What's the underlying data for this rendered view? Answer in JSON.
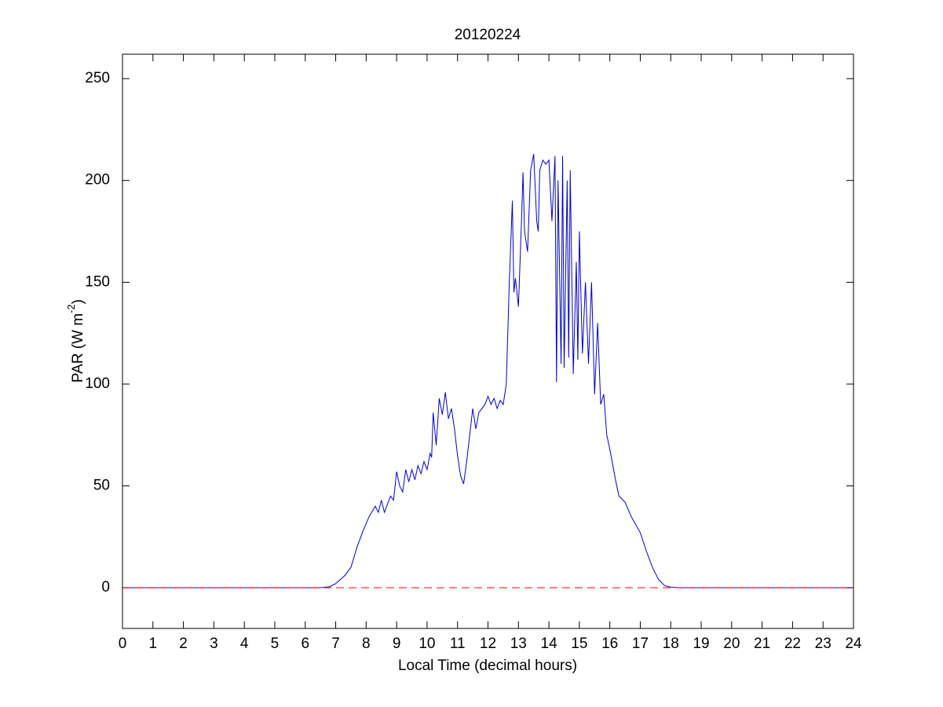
{
  "chart_data": {
    "type": "line",
    "title": "20120224",
    "xlabel": "Local Time (decimal hours)",
    "ylabel": [
      "PAR (W m",
      "-2",
      ")"
    ],
    "x": [
      0,
      6.5,
      6.8,
      7.0,
      7.3,
      7.5,
      7.7,
      7.9,
      8.1,
      8.3,
      8.4,
      8.5,
      8.6,
      8.8,
      8.9,
      9.0,
      9.1,
      9.2,
      9.3,
      9.4,
      9.5,
      9.6,
      9.7,
      9.8,
      9.9,
      10.0,
      10.1,
      10.15,
      10.2,
      10.3,
      10.4,
      10.5,
      10.6,
      10.7,
      10.8,
      10.9,
      11.0,
      11.1,
      11.2,
      11.3,
      11.4,
      11.5,
      11.6,
      11.7,
      11.9,
      12.0,
      12.1,
      12.2,
      12.3,
      12.4,
      12.5,
      12.6,
      12.7,
      12.8,
      12.85,
      12.9,
      13.0,
      13.1,
      13.15,
      13.2,
      13.3,
      13.4,
      13.5,
      13.6,
      13.65,
      13.7,
      13.8,
      13.9,
      14.0,
      14.1,
      14.2,
      14.25,
      14.3,
      14.4,
      14.45,
      14.5,
      14.6,
      14.65,
      14.7,
      14.8,
      14.9,
      14.95,
      15.0,
      15.1,
      15.2,
      15.3,
      15.4,
      15.5,
      15.6,
      15.7,
      15.8,
      15.9,
      16.0,
      16.1,
      16.2,
      16.3,
      16.5,
      16.7,
      17.0,
      17.2,
      17.4,
      17.6,
      17.8,
      18.0,
      18.3,
      24
    ],
    "series": [
      {
        "name": "PAR",
        "color": "#0000cc",
        "values": [
          0,
          0,
          0.5,
          2,
          6,
          10,
          20,
          28,
          35,
          40,
          37,
          43,
          37,
          45,
          43,
          57,
          50,
          47,
          58,
          52,
          58,
          53,
          60,
          56,
          62,
          58,
          66,
          64,
          86,
          70,
          93,
          85,
          96,
          83,
          88,
          78,
          65,
          55,
          51,
          62,
          75,
          88,
          78,
          86,
          90,
          94,
          90,
          93,
          88,
          92,
          90,
          100,
          150,
          190,
          145,
          152,
          138,
          180,
          204,
          175,
          165,
          205,
          213,
          180,
          175,
          205,
          210,
          208,
          210,
          180,
          212,
          101,
          200,
          110,
          212,
          108,
          200,
          113,
          205,
          105,
          160,
          112,
          175,
          115,
          150,
          110,
          150,
          95,
          130,
          90,
          95,
          75,
          68,
          60,
          52,
          45,
          42,
          35,
          27,
          18,
          10,
          4,
          1,
          0.3,
          0,
          0
        ]
      }
    ],
    "hline": {
      "value": 0,
      "color": "#ff0000",
      "style": "dashed"
    },
    "xlim": [
      0,
      24
    ],
    "xticks": [
      0,
      1,
      2,
      3,
      4,
      5,
      6,
      7,
      8,
      9,
      10,
      11,
      12,
      13,
      14,
      15,
      16,
      17,
      18,
      19,
      20,
      21,
      22,
      23,
      24
    ],
    "ylim": [
      -20,
      262
    ],
    "yticks": [
      0,
      50,
      100,
      150,
      200,
      250
    ],
    "grid": false
  }
}
